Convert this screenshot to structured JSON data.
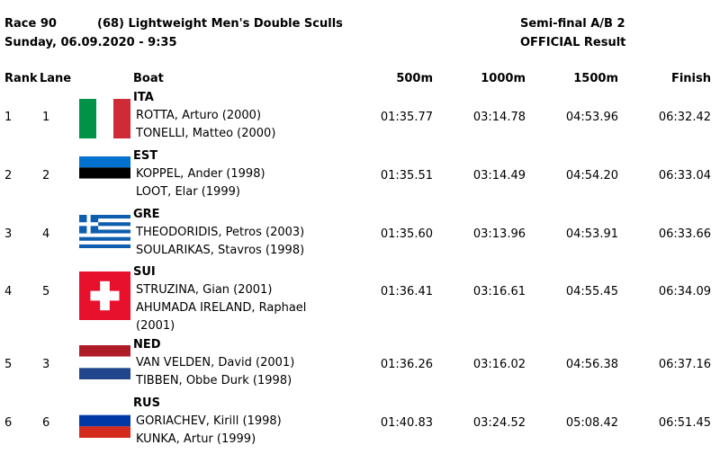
{
  "header": {
    "race": "Race 90",
    "event": "(68) Lightweight Men's Double Sculls",
    "date": "Sunday, 06.09.2020 - 9:35",
    "phase": "Semi-final A/B 2",
    "status": "OFFICIAL Result"
  },
  "table": {
    "columns": [
      "Rank",
      "Lane",
      "Boat",
      "500m",
      "1000m",
      "1500m",
      "Finish"
    ],
    "rows": [
      {
        "rank": "1",
        "lane": "1",
        "country": "ITA",
        "crew": [
          "ROTTA, Arturo (2000)",
          "TONELLI, Matteo (2000)"
        ],
        "times": [
          "01:35.77",
          "03:14.78",
          "04:53.96",
          "06:32.42"
        ]
      },
      {
        "rank": "2",
        "lane": "2",
        "country": "EST",
        "crew": [
          "KOPPEL, Ander (1998)",
          "LOOT, Elar (1999)"
        ],
        "times": [
          "01:35.51",
          "03:14.49",
          "04:54.20",
          "06:33.04"
        ]
      },
      {
        "rank": "3",
        "lane": "4",
        "country": "GRE",
        "crew": [
          "THEODORIDIS, Petros (2003)",
          "SOULARIKAS, Stavros (1998)"
        ],
        "times": [
          "01:35.60",
          "03:13.96",
          "04:53.91",
          "06:33.66"
        ]
      },
      {
        "rank": "4",
        "lane": "5",
        "country": "SUI",
        "crew": [
          "STRUZINA, Gian (2001)",
          "AHUMADA IRELAND, Raphael (2001)"
        ],
        "times": [
          "01:36.41",
          "03:16.61",
          "04:55.45",
          "06:34.09"
        ]
      },
      {
        "rank": "5",
        "lane": "3",
        "country": "NED",
        "crew": [
          "VAN VELDEN, David (2001)",
          "TIBBEN, Obbe Durk (1998)"
        ],
        "times": [
          "01:36.26",
          "03:16.02",
          "04:56.38",
          "06:37.16"
        ]
      },
      {
        "rank": "6",
        "lane": "6",
        "country": "RUS",
        "crew": [
          "GORIACHEV, Kirill (1998)",
          "KUNKA, Artur (1999)"
        ],
        "times": [
          "01:40.83",
          "03:24.52",
          "05:08.42",
          "06:51.45"
        ]
      }
    ]
  }
}
